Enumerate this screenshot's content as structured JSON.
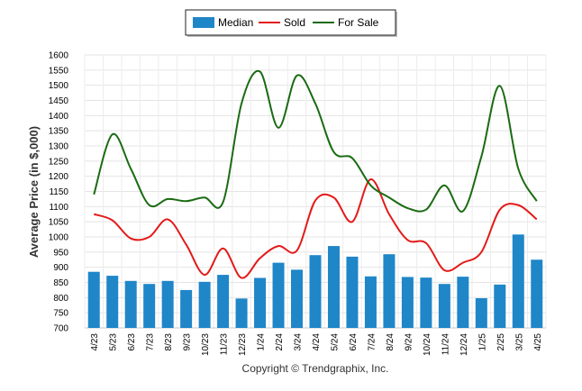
{
  "chart_data": {
    "type": "bar",
    "title": "",
    "xlabel": "",
    "ylabel": "Average Price (in $,000)",
    "ylim": [
      700,
      1600
    ],
    "yticks": [
      700,
      750,
      800,
      850,
      900,
      950,
      1000,
      1050,
      1100,
      1150,
      1200,
      1250,
      1300,
      1350,
      1400,
      1450,
      1500,
      1550,
      1600
    ],
    "grid": true,
    "legend_position": "top-center",
    "categories": [
      "4/23",
      "5/23",
      "6/23",
      "7/23",
      "8/23",
      "9/23",
      "10/23",
      "11/23",
      "12/23",
      "1/24",
      "2/24",
      "3/24",
      "4/24",
      "5/24",
      "6/24",
      "7/24",
      "8/24",
      "9/24",
      "10/24",
      "11/24",
      "12/24",
      "1/25",
      "2/25",
      "3/25",
      "4/25"
    ],
    "series": [
      {
        "name": "Median",
        "kind": "bar",
        "color": "#1f86c8",
        "values": [
          885,
          872,
          855,
          845,
          855,
          825,
          852,
          875,
          797,
          865,
          915,
          892,
          940,
          970,
          935,
          870,
          943,
          868,
          866,
          845,
          869,
          798,
          843,
          1008,
          925
        ]
      },
      {
        "name": "Sold",
        "kind": "line",
        "color": "#e41a1a",
        "values": [
          1075,
          1055,
          995,
          1000,
          1058,
          975,
          875,
          962,
          865,
          930,
          970,
          955,
          1120,
          1130,
          1050,
          1190,
          1075,
          990,
          980,
          890,
          915,
          950,
          1090,
          1105,
          1058
        ]
      },
      {
        "name": "For Sale",
        "kind": "line",
        "color": "#1a6b12",
        "values": [
          1140,
          1338,
          1225,
          1105,
          1125,
          1118,
          1130,
          1115,
          1440,
          1545,
          1360,
          1532,
          1440,
          1280,
          1260,
          1170,
          1130,
          1095,
          1090,
          1170,
          1085,
          1265,
          1498,
          1225,
          1118
        ]
      }
    ]
  },
  "footer": {
    "copyright": "Copyright © Trendgraphix, Inc."
  }
}
